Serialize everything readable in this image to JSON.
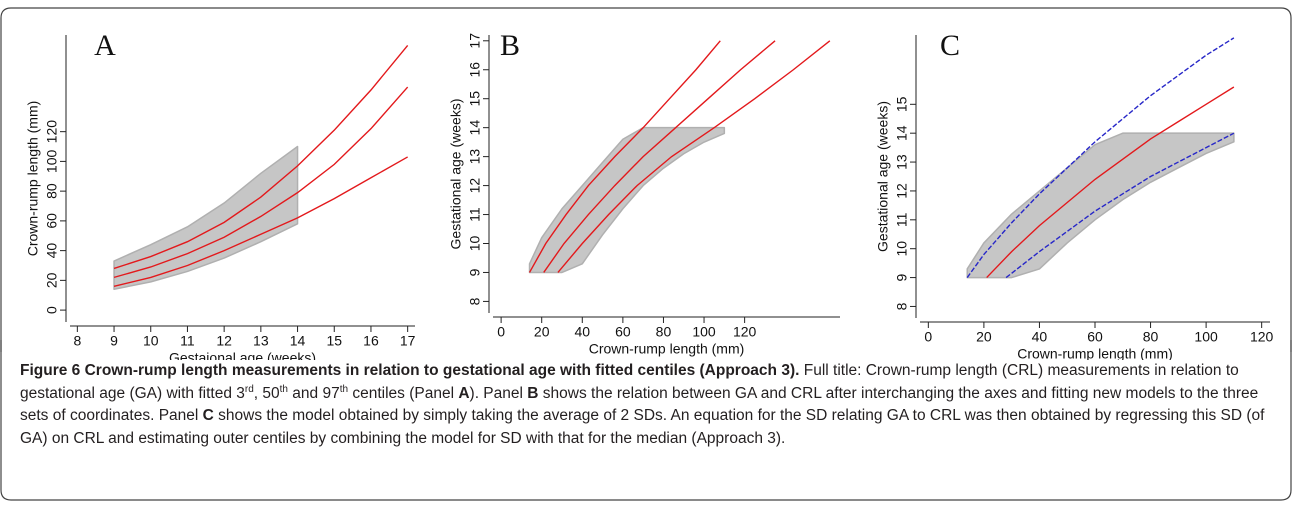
{
  "chart_data": [
    {
      "type": "scatter",
      "panel_label": "A",
      "xlabel": "Gestaional age (weeks)",
      "ylabel": "Crown-rump length (mm)",
      "xlim": [
        7.8,
        17.2
      ],
      "ylim": [
        -8,
        185
      ],
      "xticks": [
        8,
        9,
        10,
        11,
        12,
        13,
        14,
        15,
        16,
        17
      ],
      "yticks": [
        0,
        20,
        40,
        60,
        80,
        100,
        120
      ],
      "cloud": {
        "color": "#c6c6c6",
        "x": [
          9,
          10,
          11,
          12,
          13,
          14
        ],
        "lower": [
          14,
          19,
          26,
          35,
          46,
          58
        ],
        "upper": [
          33,
          44,
          56,
          72,
          92,
          110
        ]
      },
      "series": [
        {
          "color": "#e3191c",
          "x": [
            9,
            10,
            11,
            12,
            13,
            14,
            15,
            16,
            17
          ],
          "values": [
            28,
            36,
            46,
            59,
            76,
            97,
            121,
            148,
            178
          ]
        },
        {
          "color": "#e3191c",
          "x": [
            9,
            10,
            11,
            12,
            13,
            14,
            15,
            16,
            17
          ],
          "values": [
            22,
            29,
            38,
            49,
            63,
            79,
            98,
            122,
            150
          ]
        },
        {
          "color": "#e3191c",
          "x": [
            9,
            10,
            11,
            12,
            13,
            14,
            15,
            16,
            17
          ],
          "values": [
            16,
            22,
            30,
            40,
            51,
            62,
            75,
            89,
            103
          ]
        }
      ]
    },
    {
      "type": "scatter",
      "panel_label": "B",
      "xlabel": "Crown-rump length (mm)",
      "ylabel": "Gestational age (weeks)",
      "xlim": [
        -4,
        167
      ],
      "ylim": [
        7.6,
        17.2
      ],
      "xticks": [
        0,
        20,
        40,
        60,
        80,
        100,
        120
      ],
      "yticks": [
        8,
        9,
        10,
        11,
        12,
        13,
        14,
        15,
        16,
        17
      ],
      "cloud": {
        "color": "#c6c6c6",
        "x": [
          14,
          20,
          30,
          40,
          50,
          60,
          70,
          80,
          90,
          100,
          110
        ],
        "lower": [
          9,
          9,
          9,
          9.3,
          10.3,
          11.2,
          12,
          12.6,
          13.1,
          13.5,
          13.8
        ],
        "upper": [
          9.3,
          10.2,
          11.2,
          12,
          12.8,
          13.6,
          14,
          14,
          14,
          14,
          14
        ]
      },
      "series": [
        {
          "color": "#e3191c",
          "x": [
            14,
            22,
            32,
            43,
            56,
            70,
            83,
            96,
            108
          ],
          "values": [
            9,
            10,
            11,
            12,
            13,
            14,
            15,
            16,
            17
          ]
        },
        {
          "color": "#e3191c",
          "x": [
            21,
            31,
            43,
            56,
            70,
            86,
            102,
            118,
            135
          ],
          "values": [
            9,
            10,
            11,
            12,
            13,
            14,
            15,
            16,
            17
          ]
        },
        {
          "color": "#e3191c",
          "x": [
            28,
            40,
            53,
            67,
            84,
            105,
            125,
            144,
            162
          ],
          "values": [
            9,
            10,
            11,
            12,
            13,
            14,
            15,
            16,
            17
          ]
        }
      ]
    },
    {
      "type": "scatter",
      "panel_label": "C",
      "xlabel": "Crown-rump length (mm)",
      "ylabel": "Gestational age (weeks)",
      "xlim": [
        -3,
        123
      ],
      "ylim": [
        7.6,
        17.4
      ],
      "xticks": [
        0,
        20,
        40,
        60,
        80,
        100,
        120
      ],
      "yticks": [
        8,
        9,
        10,
        11,
        12,
        13,
        14,
        15
      ],
      "cloud": {
        "color": "#c6c6c6",
        "x": [
          14,
          20,
          30,
          40,
          50,
          60,
          70,
          80,
          90,
          100,
          110
        ],
        "lower": [
          9,
          9,
          9,
          9.3,
          10.2,
          11,
          11.7,
          12.3,
          12.8,
          13.3,
          13.7
        ],
        "upper": [
          9.3,
          10.2,
          11.2,
          12,
          12.8,
          13.6,
          14,
          14,
          14,
          14,
          14
        ]
      },
      "series": [
        {
          "color": "#2727c8",
          "dashed": true,
          "x": [
            14,
            20,
            30,
            40,
            50,
            60,
            70,
            80,
            90,
            100,
            110
          ],
          "values": [
            9,
            9.8,
            10.9,
            11.9,
            12.8,
            13.7,
            14.5,
            15.3,
            16,
            16.7,
            17.3
          ]
        },
        {
          "color": "#e3191c",
          "x": [
            21,
            30,
            40,
            50,
            60,
            70,
            80,
            90,
            100,
            110
          ],
          "values": [
            9,
            9.9,
            10.8,
            11.6,
            12.4,
            13.1,
            13.8,
            14.4,
            15,
            15.6
          ]
        },
        {
          "color": "#2727c8",
          "dashed": true,
          "x": [
            28,
            40,
            50,
            60,
            70,
            80,
            90,
            100,
            110
          ],
          "values": [
            9,
            9.9,
            10.6,
            11.3,
            11.9,
            12.5,
            13,
            13.5,
            14
          ]
        }
      ]
    }
  ],
  "caption": {
    "title": "Figure 6 Crown-rump length measurements in relation to gestational age with fitted centiles (Approach 3).",
    "parts": [
      " Full title: Crown-rump length (CRL) measurements in relation to gestational age (GA) with fitted 3",
      "rd",
      ", 50",
      "th",
      " and 97",
      "th",
      " centiles (Panel ",
      "A",
      "). Panel ",
      "B",
      " shows the relation between GA and CRL after interchanging the axes and fitting new models to the three sets of coordinates. Panel ",
      "C",
      " shows the model obtained by simply taking the average of 2 SDs. An equation for the SD relating GA to CRL was then obtained by regressing this SD (of GA) on CRL and estimating outer centiles by combining the model for SD with that for the median (Approach 3)."
    ]
  }
}
